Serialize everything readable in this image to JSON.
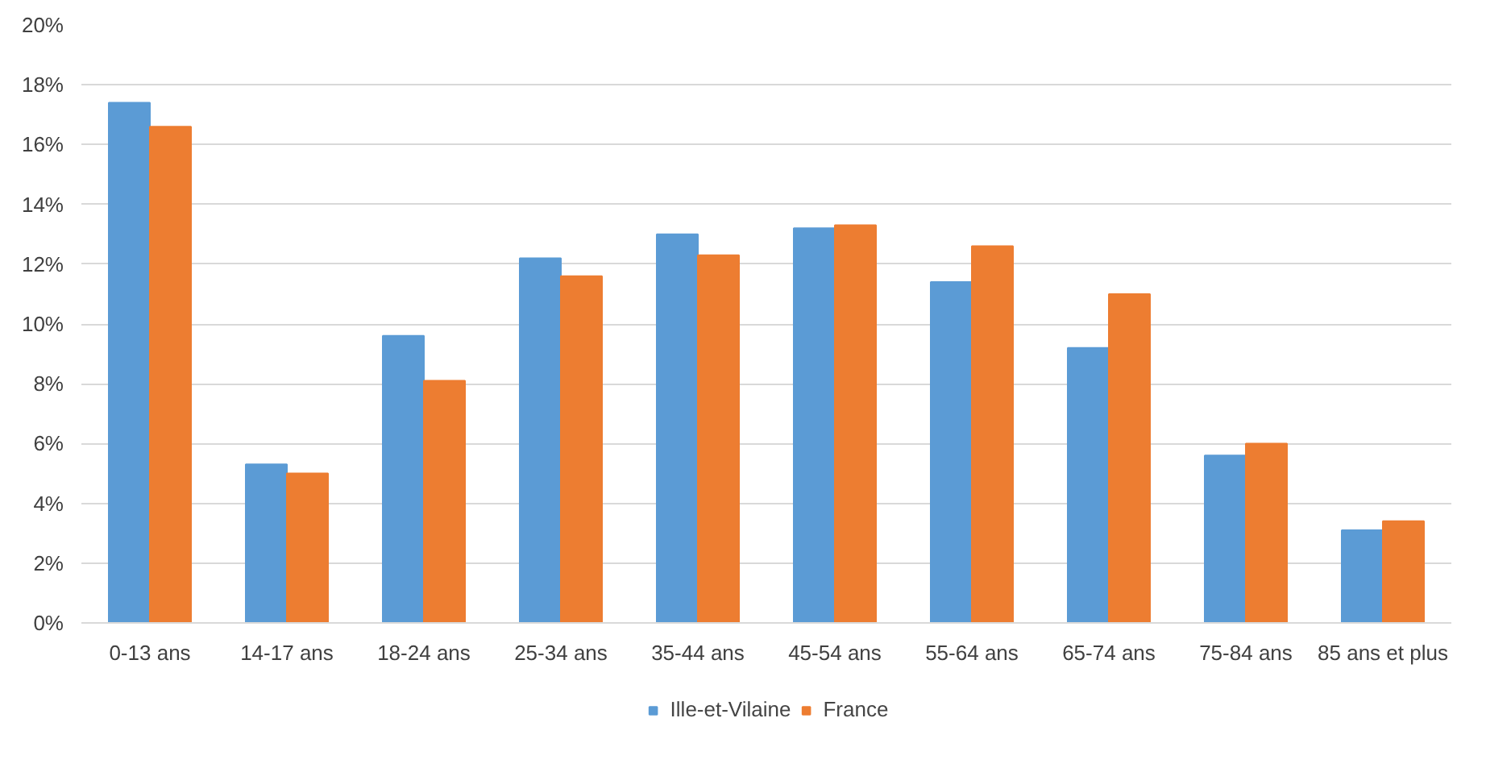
{
  "chart_data": {
    "type": "bar",
    "categories": [
      "0-13 ans",
      "14-17 ans",
      "18-24 ans",
      "25-34 ans",
      "35-44 ans",
      "45-54 ans",
      "55-64 ans",
      "65-74 ans",
      "75-84 ans",
      "85 ans et plus"
    ],
    "series": [
      {
        "name": "Ille-et-Vilaine",
        "color": "#5b9bd5",
        "values": [
          17.4,
          5.3,
          9.6,
          12.2,
          13.0,
          13.2,
          11.4,
          9.2,
          5.6,
          3.1
        ]
      },
      {
        "name": "France",
        "color": "#ed7d31",
        "values": [
          16.6,
          5.0,
          8.1,
          11.6,
          12.3,
          13.3,
          12.6,
          11.0,
          6.0,
          3.4
        ]
      }
    ],
    "ylim": [
      0,
      20
    ],
    "yticks": [
      {
        "value": 0,
        "label": "0%"
      },
      {
        "value": 2,
        "label": "2%"
      },
      {
        "value": 4,
        "label": "4%"
      },
      {
        "value": 6,
        "label": "6%"
      },
      {
        "value": 8,
        "label": "8%"
      },
      {
        "value": 10,
        "label": "10%"
      },
      {
        "value": 12,
        "label": "12%"
      },
      {
        "value": 14,
        "label": "14%"
      },
      {
        "value": 16,
        "label": "16%"
      },
      {
        "value": 18,
        "label": "18%"
      },
      {
        "value": 20,
        "label": "20%"
      }
    ],
    "grid": "y",
    "legend": "bottom"
  }
}
